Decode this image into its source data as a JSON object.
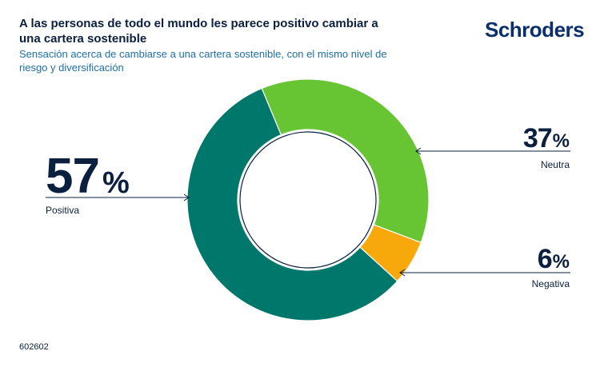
{
  "header": {
    "title": "A las personas de todo el mundo les parece positivo cambiar a una cartera sostenible",
    "subtitle": "Sensación acerca de cambiarse a una cartera sostenible, con el mismo nivel de riesgo y diversificación",
    "logo_text": "Schroders"
  },
  "footer": {
    "code": "602602"
  },
  "colors": {
    "positiva": "#00776b",
    "neutra": "#67c432",
    "negativa": "#f7a80a",
    "navy": "#0b1f3f",
    "accent": "#1e6fa8"
  },
  "chart_data": {
    "type": "pie",
    "variant": "donut",
    "title": "A las personas de todo el mundo les parece positivo cambiar a una cartera sostenible",
    "subtitle": "Sensación acerca de cambiarse a una cartera sostenible, con el mismo nivel de riesgo y diversificación",
    "categories": [
      "Neutra",
      "Negativa",
      "Positiva"
    ],
    "values": [
      37,
      6,
      57
    ],
    "labels": [
      "37%",
      "6%",
      "57%"
    ],
    "number_labels": [
      "37",
      "6",
      "57"
    ],
    "unit": "%"
  }
}
